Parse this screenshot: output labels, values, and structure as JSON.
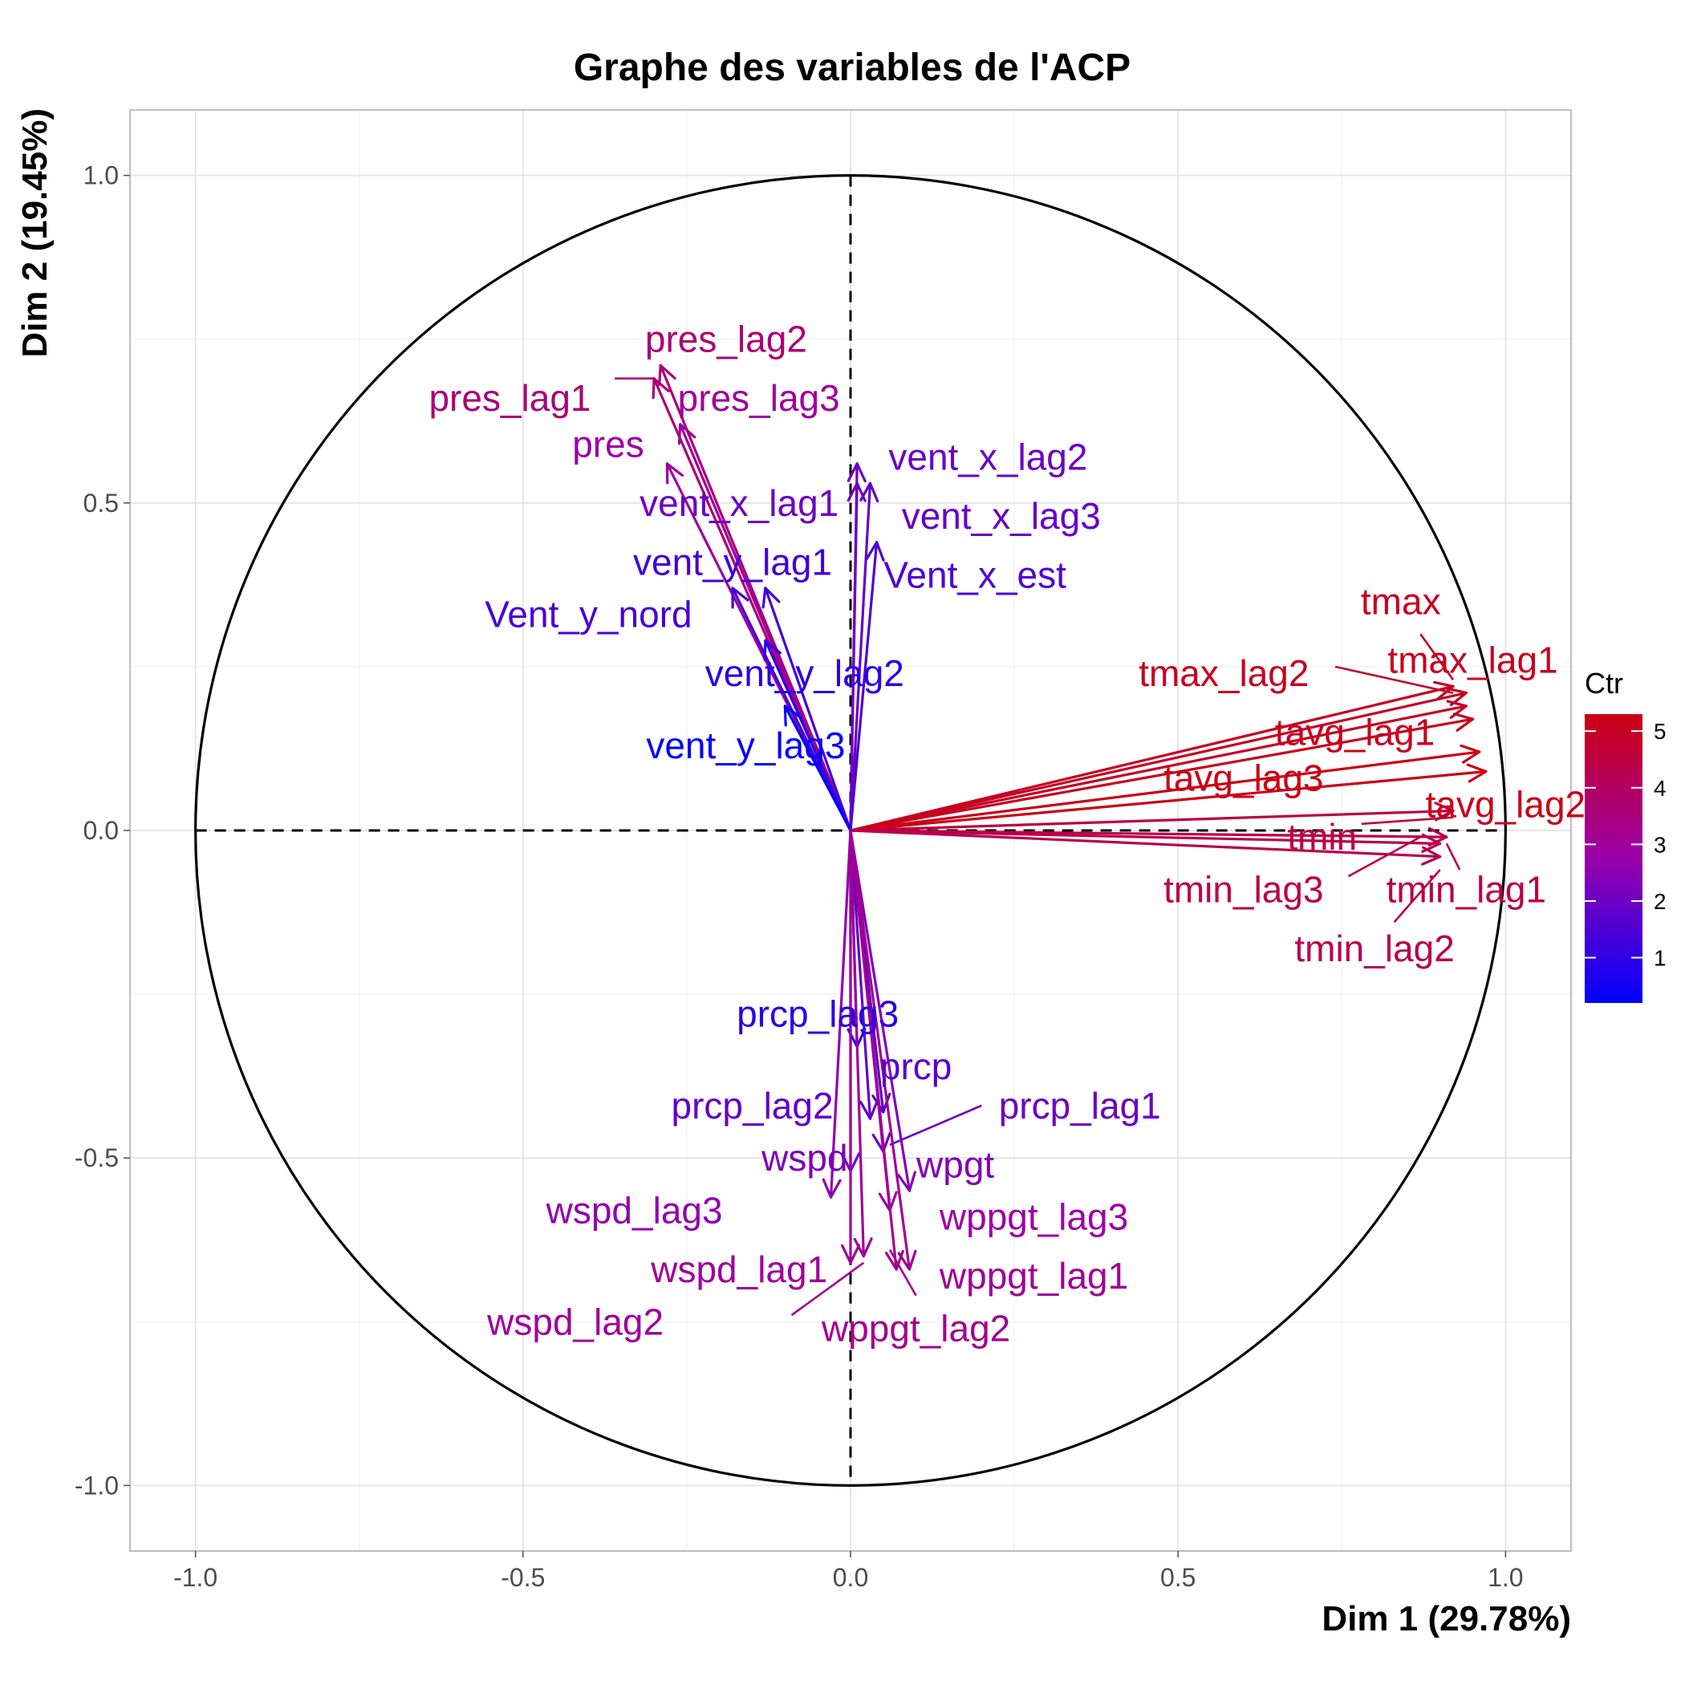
{
  "chart_data": {
    "type": "scatter",
    "subtype": "pca-correlation-circle",
    "title": "Graphe des variables de l'ACP",
    "xlabel": "Dim 1 (29.78%)",
    "ylabel": "Dim 2 (19.45%)",
    "xlim": [
      -1.1,
      1.1
    ],
    "ylim": [
      -1.1,
      1.1
    ],
    "x_ticks": [
      "-1.0",
      "-0.5",
      "0.0",
      "0.5",
      "1.0"
    ],
    "y_ticks": [
      "1.0",
      "0.5",
      "0.0",
      "-0.5",
      "-1.0"
    ],
    "grid": true,
    "unit_circle": true,
    "legend": {
      "title": "Ctr",
      "type": "color-gradient",
      "position": "right",
      "range": [
        0.2,
        5.3
      ],
      "ticks": [
        "1",
        "2",
        "3",
        "4",
        "5"
      ],
      "colors": [
        "#0000ff",
        "#cc0011"
      ]
    },
    "variables": [
      {
        "name": "pres_lag2",
        "x": -0.29,
        "y": 0.71,
        "ctr": 3.6
      },
      {
        "name": "pres_lag1",
        "x": -0.3,
        "y": 0.69,
        "ctr": 3.6
      },
      {
        "name": "pres_lag3",
        "x": -0.26,
        "y": 0.62,
        "ctr": 3.0
      },
      {
        "name": "pres",
        "x": -0.28,
        "y": 0.56,
        "ctr": 2.9
      },
      {
        "name": "vent_x_lag2",
        "x": 0.01,
        "y": 0.56,
        "ctr": 2.0
      },
      {
        "name": "vent_x_lag3",
        "x": 0.03,
        "y": 0.53,
        "ctr": 1.9
      },
      {
        "name": "vent_x_lag1",
        "x": 0.01,
        "y": 0.53,
        "ctr": 2.0
      },
      {
        "name": "Vent_x_est",
        "x": 0.04,
        "y": 0.44,
        "ctr": 1.5
      },
      {
        "name": "vent_y_lag1",
        "x": -0.13,
        "y": 0.37,
        "ctr": 1.3
      },
      {
        "name": "Vent_y_nord",
        "x": -0.18,
        "y": 0.37,
        "ctr": 1.4
      },
      {
        "name": "vent_y_lag2",
        "x": -0.13,
        "y": 0.29,
        "ctr": 0.9
      },
      {
        "name": "vent_y_lag3",
        "x": -0.1,
        "y": 0.19,
        "ctr": 0.3
      },
      {
        "name": "tmax",
        "x": 0.92,
        "y": 0.22,
        "ctr": 5.0
      },
      {
        "name": "tmax_lag1",
        "x": 0.94,
        "y": 0.21,
        "ctr": 5.0
      },
      {
        "name": "tmax_lag2",
        "x": 0.94,
        "y": 0.19,
        "ctr": 5.0
      },
      {
        "name": "tavg_lag1",
        "x": 0.95,
        "y": 0.17,
        "ctr": 5.1
      },
      {
        "name": "tavg_lag3",
        "x": 0.96,
        "y": 0.12,
        "ctr": 5.2
      },
      {
        "name": "tavg_lag2",
        "x": 0.97,
        "y": 0.09,
        "ctr": 5.2
      },
      {
        "name": "tmin",
        "x": 0.92,
        "y": 0.03,
        "ctr": 4.5
      },
      {
        "name": "tmin_lag1",
        "x": 0.91,
        "y": -0.01,
        "ctr": 4.4
      },
      {
        "name": "tmin_lag3",
        "x": 0.9,
        "y": -0.02,
        "ctr": 4.4
      },
      {
        "name": "tmin_lag2",
        "x": 0.9,
        "y": -0.04,
        "ctr": 4.3
      },
      {
        "name": "prcp_lag3",
        "x": 0.01,
        "y": -0.33,
        "ctr": 0.9
      },
      {
        "name": "prcp",
        "x": 0.05,
        "y": -0.43,
        "ctr": 1.7
      },
      {
        "name": "prcp_lag2",
        "x": 0.03,
        "y": -0.44,
        "ctr": 1.8
      },
      {
        "name": "prcp_lag1",
        "x": 0.05,
        "y": -0.49,
        "ctr": 2.0
      },
      {
        "name": "wpgt",
        "x": 0.09,
        "y": -0.55,
        "ctr": 2.4
      },
      {
        "name": "wspd",
        "x": 0.0,
        "y": -0.52,
        "ctr": 2.3
      },
      {
        "name": "wspd_lag3",
        "x": -0.03,
        "y": -0.56,
        "ctr": 2.6
      },
      {
        "name": "wppgt_lag3",
        "x": 0.06,
        "y": -0.58,
        "ctr": 2.8
      },
      {
        "name": "wspd_lag1",
        "x": 0.0,
        "y": -0.66,
        "ctr": 3.0
      },
      {
        "name": "wppgt_lag1",
        "x": 0.09,
        "y": -0.67,
        "ctr": 3.1
      },
      {
        "name": "wppgt_lag2",
        "x": 0.07,
        "y": -0.67,
        "ctr": 3.2
      },
      {
        "name": "wspd_lag2",
        "x": 0.02,
        "y": -0.65,
        "ctr": 3.0
      }
    ],
    "label_positions": [
      {
        "name": "pres_lag2",
        "x": -0.19,
        "y": 0.75
      },
      {
        "name": "pres_lag1",
        "x": -0.52,
        "y": 0.66
      },
      {
        "name": "pres_lag3",
        "x": -0.14,
        "y": 0.66
      },
      {
        "name": "pres",
        "x": -0.37,
        "y": 0.59
      },
      {
        "name": "vent_x_lag2",
        "x": 0.21,
        "y": 0.57
      },
      {
        "name": "vent_x_lag3",
        "x": 0.23,
        "y": 0.48
      },
      {
        "name": "vent_x_lag1",
        "x": -0.17,
        "y": 0.5
      },
      {
        "name": "Vent_x_est",
        "x": 0.19,
        "y": 0.39
      },
      {
        "name": "vent_y_lag1",
        "x": -0.18,
        "y": 0.41
      },
      {
        "name": "Vent_y_nord",
        "x": -0.4,
        "y": 0.33
      },
      {
        "name": "vent_y_lag2",
        "x": -0.07,
        "y": 0.24
      },
      {
        "name": "vent_y_lag3",
        "x": -0.16,
        "y": 0.13
      },
      {
        "name": "tmax",
        "x": 0.84,
        "y": 0.35
      },
      {
        "name": "tmax_lag1",
        "x": 0.95,
        "y": 0.26
      },
      {
        "name": "tmax_lag2",
        "x": 0.57,
        "y": 0.24
      },
      {
        "name": "tavg_lag1",
        "x": 0.77,
        "y": 0.15
      },
      {
        "name": "tavg_lag3",
        "x": 0.6,
        "y": 0.08
      },
      {
        "name": "tavg_lag2",
        "x": 1.0,
        "y": 0.04
      },
      {
        "name": "tmin",
        "x": 0.72,
        "y": -0.01
      },
      {
        "name": "tmin_lag1",
        "x": 0.94,
        "y": -0.09
      },
      {
        "name": "tmin_lag3",
        "x": 0.6,
        "y": -0.09
      },
      {
        "name": "tmin_lag2",
        "x": 0.8,
        "y": -0.18
      },
      {
        "name": "prcp_lag3",
        "x": -0.05,
        "y": -0.28
      },
      {
        "name": "prcp",
        "x": 0.1,
        "y": -0.36
      },
      {
        "name": "prcp_lag2",
        "x": -0.15,
        "y": -0.42
      },
      {
        "name": "prcp_lag1",
        "x": 0.35,
        "y": -0.42
      },
      {
        "name": "wpgt",
        "x": 0.16,
        "y": -0.51
      },
      {
        "name": "wspd",
        "x": -0.07,
        "y": -0.5
      },
      {
        "name": "wspd_lag3",
        "x": -0.33,
        "y": -0.58
      },
      {
        "name": "wppgt_lag3",
        "x": 0.28,
        "y": -0.59
      },
      {
        "name": "wspd_lag1",
        "x": -0.17,
        "y": -0.67
      },
      {
        "name": "wppgt_lag1",
        "x": 0.28,
        "y": -0.68
      },
      {
        "name": "wppgt_lag2",
        "x": 0.1,
        "y": -0.76
      },
      {
        "name": "wspd_lag2",
        "x": -0.42,
        "y": -0.75
      }
    ],
    "leaders": [
      {
        "name": "pres_lag1",
        "from": [
          -0.36,
          0.69
        ],
        "to": [
          -0.3,
          0.69
        ]
      },
      {
        "name": "tmax_lag2",
        "from": [
          0.74,
          0.25
        ],
        "to": [
          0.92,
          0.21
        ]
      },
      {
        "name": "tmax",
        "from": [
          0.87,
          0.3
        ],
        "to": [
          0.92,
          0.23
        ]
      },
      {
        "name": "tmin",
        "from": [
          0.78,
          0.01
        ],
        "to": [
          0.92,
          0.02
        ]
      },
      {
        "name": "tmin_lag3",
        "from": [
          0.76,
          -0.07
        ],
        "to": [
          0.87,
          -0.01
        ]
      },
      {
        "name": "tmin_lag1",
        "from": [
          0.93,
          -0.06
        ],
        "to": [
          0.91,
          -0.02
        ]
      },
      {
        "name": "tmin_lag2",
        "from": [
          0.83,
          -0.14
        ],
        "to": [
          0.9,
          -0.06
        ]
      },
      {
        "name": "prcp_lag1",
        "from": [
          0.2,
          -0.42
        ],
        "to": [
          0.06,
          -0.48
        ]
      },
      {
        "name": "wspd_lag2",
        "from": [
          -0.09,
          -0.74
        ],
        "to": [
          0.02,
          -0.66
        ]
      },
      {
        "name": "wppgt_lag2",
        "from": [
          0.1,
          -0.71
        ],
        "to": [
          0.06,
          -0.64
        ]
      }
    ]
  }
}
